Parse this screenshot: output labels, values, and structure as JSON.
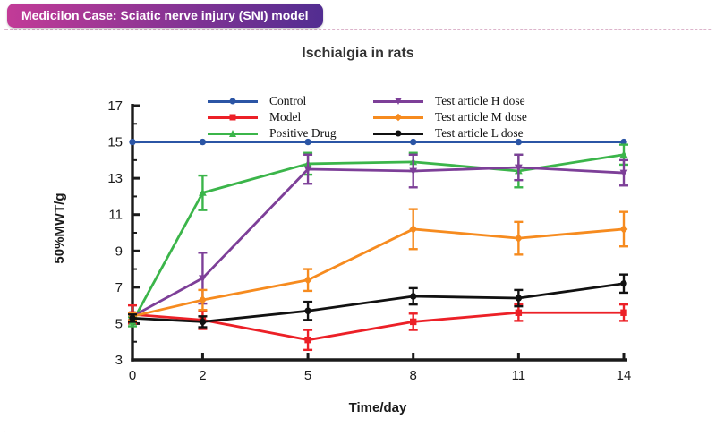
{
  "header": {
    "badge": "Medicilon Case: Sciatic nerve injury (SNI) model"
  },
  "colors": {
    "badge_gradient_from": "#c23b97",
    "badge_gradient_to": "#522d91",
    "panel_border": "#dcb4cb",
    "axis": "#1a1a1a",
    "title_text": "#333333"
  },
  "chart_data": {
    "type": "line",
    "title": "Ischialgia in rats",
    "xlabel": "Time/day",
    "ylabel": "50%MWT/g",
    "x": [
      0,
      2,
      5,
      8,
      11,
      14
    ],
    "xlim": [
      0,
      14
    ],
    "ylim": [
      3,
      17
    ],
    "xticks": [
      0,
      2,
      5,
      8,
      11,
      14
    ],
    "yticks": [
      3,
      5,
      7,
      9,
      11,
      13,
      15,
      17
    ],
    "y_minor_ticks": [
      4,
      6,
      8,
      10,
      12,
      14,
      16
    ],
    "grid": false,
    "error_bars": true,
    "legend_position": "inside-top",
    "legend_columns": [
      [
        0,
        1,
        2
      ],
      [
        3,
        4,
        5
      ]
    ],
    "series": [
      {
        "name": "Control",
        "color": "#2b55a5",
        "marker": "circle",
        "values": [
          15,
          15,
          15,
          15,
          15,
          15
        ],
        "errors": [
          0,
          0,
          0,
          0,
          0,
          0
        ]
      },
      {
        "name": "Model",
        "color": "#ec2027",
        "marker": "square",
        "values": [
          5.5,
          5.2,
          4.1,
          5.1,
          5.6,
          5.6
        ],
        "errors": [
          0.5,
          0.5,
          0.55,
          0.45,
          0.45,
          0.45
        ]
      },
      {
        "name": "Positive Drug",
        "color": "#3bb54a",
        "marker": "triangle-up",
        "values": [
          5.1,
          12.2,
          13.8,
          13.9,
          13.4,
          14.3
        ],
        "errors": [
          0.25,
          0.95,
          0.6,
          0.5,
          0.9,
          0.55
        ]
      },
      {
        "name": "Test article H dose",
        "color": "#7d3f98",
        "marker": "triangle-down",
        "values": [
          5.4,
          7.5,
          13.5,
          13.4,
          13.6,
          13.3
        ],
        "errors": [
          0.2,
          1.4,
          0.8,
          0.9,
          0.7,
          0.7
        ]
      },
      {
        "name": "Test article M dose",
        "color": "#f68b1f",
        "marker": "diamond",
        "values": [
          5.4,
          6.3,
          7.4,
          10.2,
          9.7,
          10.2
        ],
        "errors": [
          0.2,
          0.55,
          0.6,
          1.1,
          0.9,
          0.95
        ]
      },
      {
        "name": "Test article L dose",
        "color": "#111111",
        "marker": "circle",
        "values": [
          5.3,
          5.1,
          5.7,
          6.5,
          6.4,
          7.2
        ],
        "errors": [
          0.2,
          0.3,
          0.5,
          0.45,
          0.45,
          0.5
        ]
      }
    ]
  }
}
